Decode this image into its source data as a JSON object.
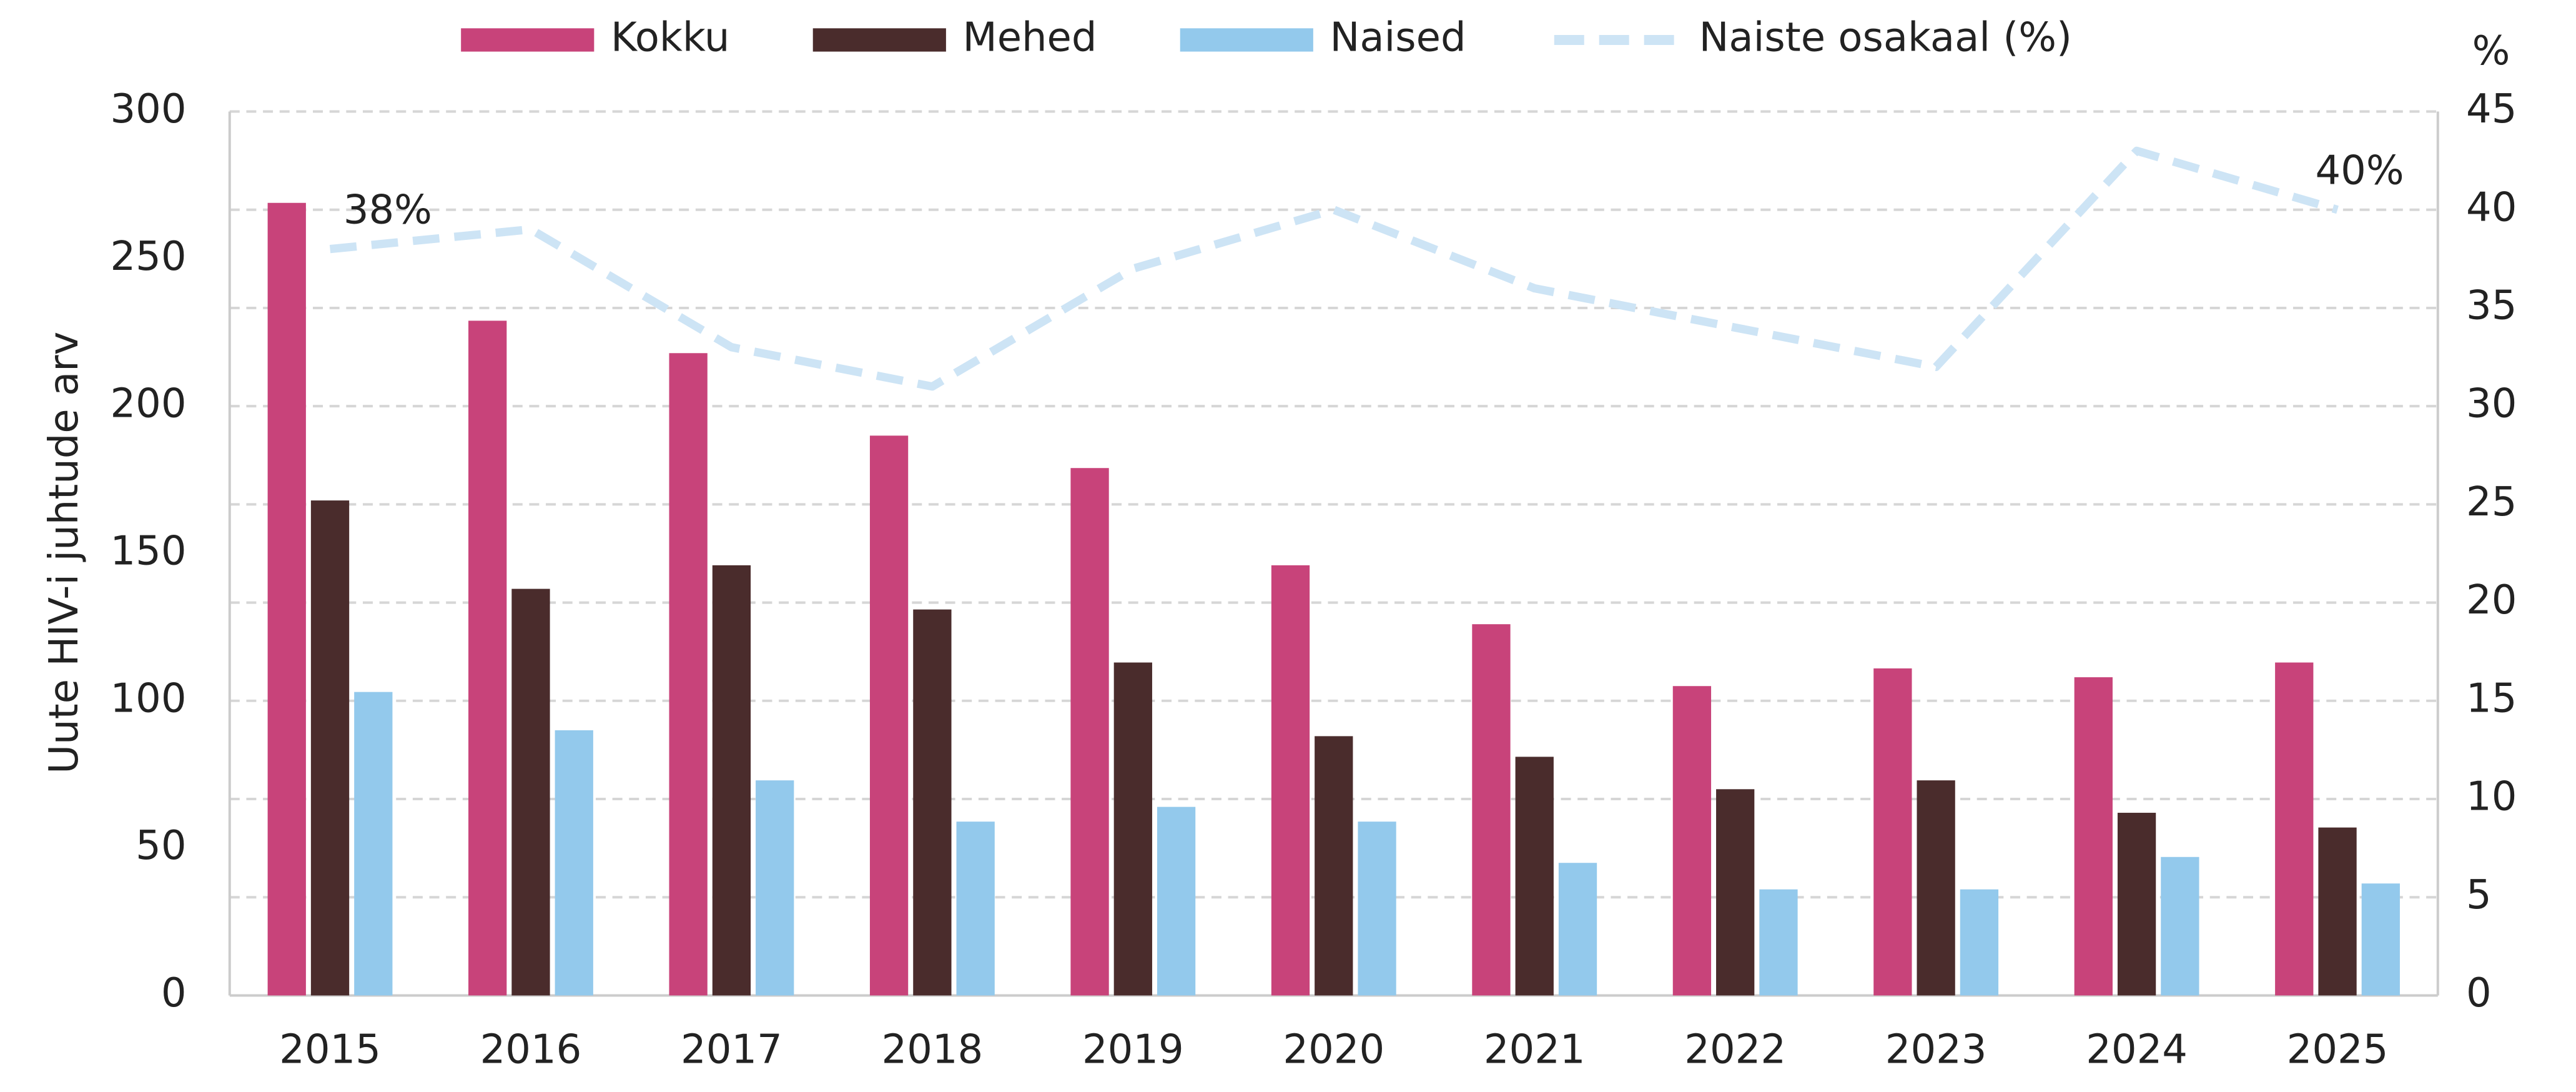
{
  "chart_data": {
    "type": "bar",
    "y_label": "Uute HIV-i juhtude arv",
    "y2_label": "%",
    "categories": [
      "2015",
      "2016",
      "2017",
      "2018",
      "2019",
      "2020",
      "2021",
      "2022",
      "2023",
      "2024",
      "2025"
    ],
    "series": [
      {
        "name": "Kokku",
        "color": "#c8437a",
        "values": [
          269,
          229,
          218,
          190,
          179,
          146,
          126,
          105,
          111,
          108,
          113
        ]
      },
      {
        "name": "Mehed",
        "color": "#4a2c2c",
        "values": [
          168,
          138,
          146,
          131,
          113,
          88,
          81,
          70,
          73,
          62,
          57
        ]
      },
      {
        "name": "Naised",
        "color": "#93c9ec",
        "values": [
          103,
          90,
          73,
          59,
          64,
          59,
          45,
          36,
          36,
          47,
          38
        ]
      },
      {
        "name": "Naiste osakaal (%)",
        "color": "#cde4f5",
        "type": "line",
        "dashed": true,
        "axis": "y2",
        "values": [
          38,
          39,
          33,
          31,
          37,
          40,
          36,
          34,
          32,
          43,
          40
        ],
        "value_labels": [
          "38%",
          null,
          null,
          null,
          null,
          null,
          null,
          null,
          null,
          null,
          "40%"
        ]
      }
    ],
    "ylim": [
      0,
      300
    ],
    "yticks": [
      0,
      50,
      100,
      150,
      200,
      250,
      300
    ],
    "y2lim": [
      0,
      45
    ],
    "y2ticks": [
      0,
      5,
      10,
      15,
      20,
      25,
      30,
      35,
      40,
      45
    ],
    "grid": true,
    "legend": "top"
  }
}
